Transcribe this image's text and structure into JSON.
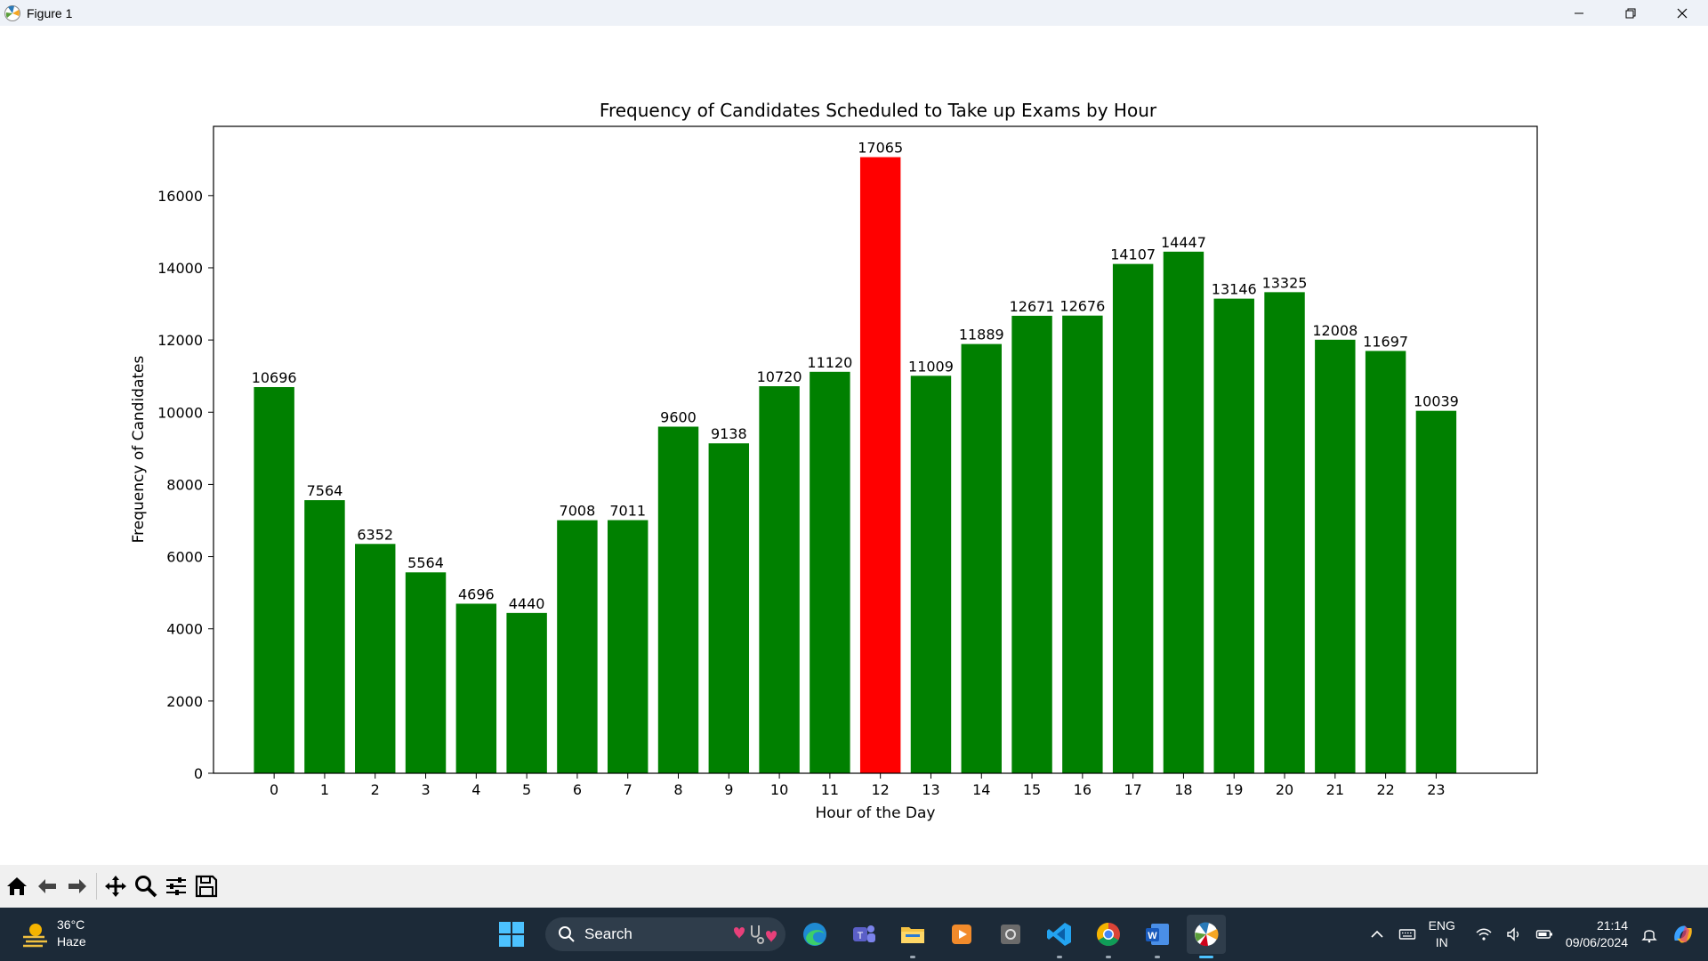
{
  "window": {
    "title": "Figure 1",
    "controls": [
      "minimize-icon",
      "restore-icon",
      "close-icon"
    ]
  },
  "chart_data": {
    "type": "bar",
    "title": "Frequency of Candidates Scheduled to Take up Exams by Hour",
    "xlabel": "Hour of the Day",
    "ylabel": "Frequency of Candidates",
    "categories": [
      "0",
      "1",
      "2",
      "3",
      "4",
      "5",
      "6",
      "7",
      "8",
      "9",
      "10",
      "11",
      "12",
      "13",
      "14",
      "15",
      "16",
      "17",
      "18",
      "19",
      "20",
      "21",
      "22",
      "23"
    ],
    "values": [
      10696,
      7564,
      6352,
      5564,
      4696,
      4440,
      7008,
      7011,
      9600,
      9138,
      10720,
      11120,
      17065,
      11009,
      11889,
      12671,
      12676,
      14107,
      14447,
      13146,
      13325,
      12008,
      11697,
      10039
    ],
    "data_labels": [
      "10696",
      "7564",
      "6352",
      "5564",
      "4696",
      "4440",
      "7008",
      "7011",
      "9600",
      "9138",
      "10720",
      "11120",
      "17065",
      "11009",
      "11889",
      "12671",
      "12676",
      "14107",
      "14447",
      "13146",
      "13325",
      "12008",
      "11697",
      "10039"
    ],
    "yticks": [
      "0",
      "2000",
      "4000",
      "6000",
      "8000",
      "10000",
      "12000",
      "14000",
      "16000"
    ],
    "ylim": [
      0,
      17918
    ],
    "xlim": [
      -1.2,
      25
    ],
    "highlight_index": 12,
    "colors": {
      "bar": "#008000",
      "highlight": "#ff0000"
    },
    "grid": false,
    "legend": "none"
  },
  "toolbar": {
    "buttons": [
      "home-icon",
      "back-icon",
      "forward-icon",
      "pan-icon",
      "zoom-icon",
      "configure-subplots-icon",
      "save-icon"
    ]
  },
  "taskbar": {
    "weather": {
      "temp": "36°C",
      "condition": "Haze"
    },
    "search_placeholder": "Search",
    "apps": [
      "edge-icon",
      "teams-icon",
      "file-explorer-icon",
      "media-player-icon",
      "camera-icon",
      "vscode-icon",
      "chrome-icon",
      "word-icon",
      "matplotlib-icon"
    ],
    "lang_top": "ENG",
    "lang_bottom": "IN",
    "time": "21:14",
    "date": "09/06/2024"
  }
}
